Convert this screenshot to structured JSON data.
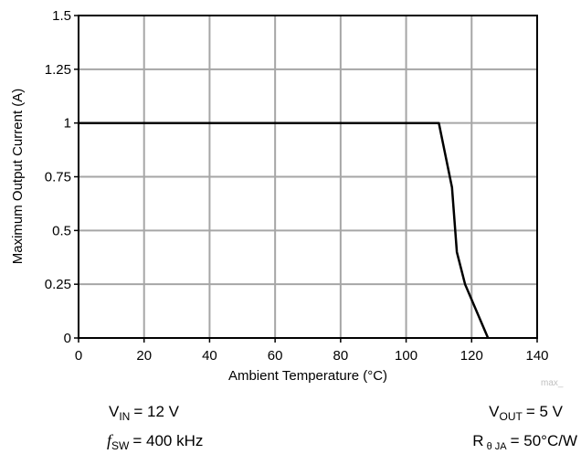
{
  "chart_data": {
    "type": "line",
    "xlabel": "Ambient Temperature (°C)",
    "ylabel": "Maximum Output Current (A)",
    "xlim": [
      0,
      140
    ],
    "ylim": [
      0,
      1.5
    ],
    "x_ticks": [
      0,
      20,
      40,
      60,
      80,
      100,
      120,
      140
    ],
    "y_ticks": [
      0,
      0.25,
      0.5,
      0.75,
      1,
      1.25,
      1.5
    ],
    "x_tick_labels": [
      "0",
      "20",
      "40",
      "60",
      "80",
      "100",
      "120",
      "140"
    ],
    "y_tick_labels": [
      "0",
      "0.25",
      "0.5",
      "0.75",
      "1",
      "1.25",
      "1.5"
    ],
    "grid": true,
    "series": [
      {
        "color": "#000000",
        "x": [
          0,
          110,
          114,
          115.5,
          118,
          125
        ],
        "y": [
          1,
          1,
          0.7,
          0.4,
          0.25,
          0
        ]
      }
    ],
    "watermark": "max_",
    "conditions": {
      "vin": {
        "symbol": "V",
        "sub": "IN",
        "value": "= 12 V"
      },
      "fsw": {
        "symbol": "f",
        "sub": "SW",
        "value": "= 400 kHz"
      },
      "vout": {
        "symbol": "V",
        "sub": "OUT",
        "value": "= 5 V"
      },
      "rtheta": {
        "symbol": "R",
        "sub": "θ JA",
        "value": "= 50°C/W"
      }
    }
  }
}
